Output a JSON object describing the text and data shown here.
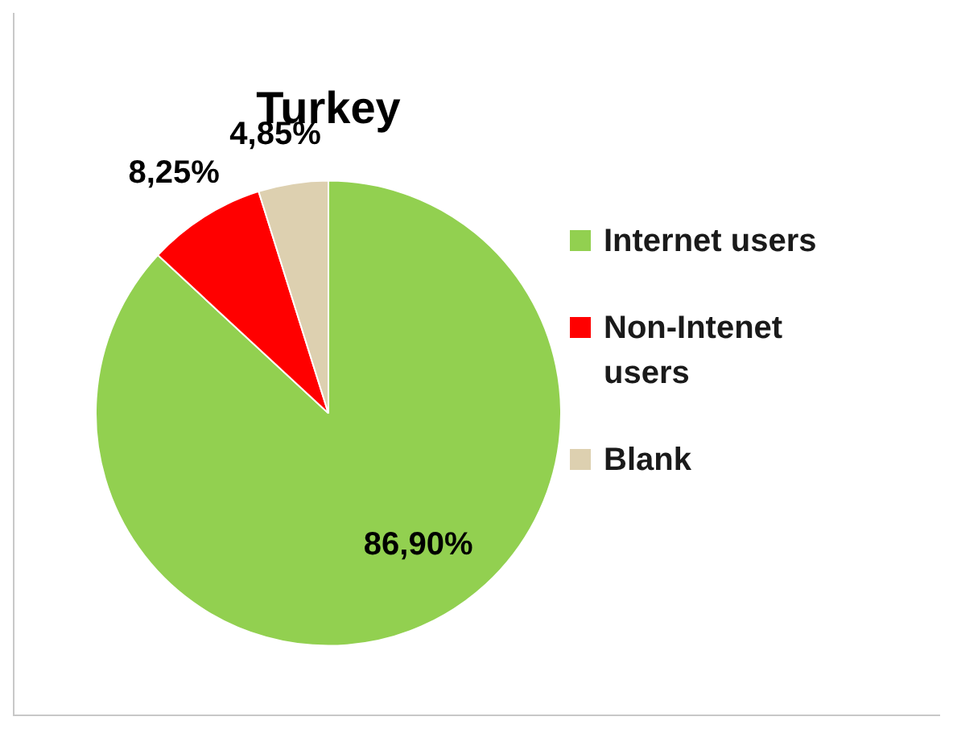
{
  "chart_data": {
    "type": "pie",
    "title": "Turkey",
    "categories": [
      "Internet users",
      "Non-Intenet users",
      "Blank"
    ],
    "values": [
      86.9,
      8.25,
      4.85
    ],
    "value_labels": [
      "86,90%",
      "8,25%",
      "4,85%"
    ],
    "colors": [
      "#92d050",
      "#ff0000",
      "#ddd0b0"
    ],
    "legend": "right"
  }
}
